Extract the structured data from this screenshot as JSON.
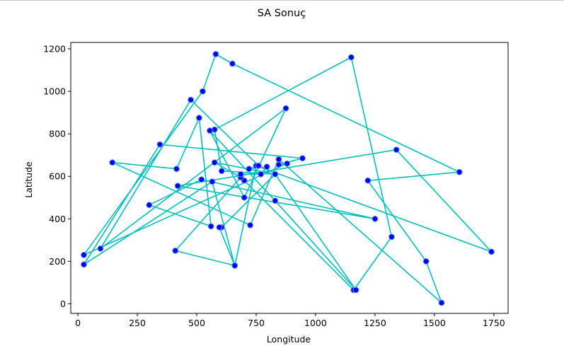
{
  "chart_data": {
    "type": "line",
    "title": "SA Sonuç",
    "xlabel": "Longitude",
    "ylabel": "Latitude",
    "xlim": [
      -30,
      1810
    ],
    "ylim": [
      -45,
      1230
    ],
    "xticks": [
      0,
      250,
      500,
      750,
      1000,
      1250,
      1500,
      1750
    ],
    "yticks": [
      0,
      200,
      400,
      600,
      800,
      1000,
      1200
    ],
    "grid": false,
    "line_color": "#00bfbf",
    "marker_face_color": "#0000ff",
    "marker_edge_color": "#6fa8dc",
    "series": [
      {
        "x": [
          565,
          25,
          345,
          945,
          845,
          880,
          25,
          525,
          580,
          650,
          1605,
          1220,
          1465,
          1530,
          845,
          725,
          145,
          415,
          510,
          560,
          300,
          520,
          1250,
          420,
          1340,
          1740,
          750,
          660,
          410,
          685,
          575,
          830,
          605,
          575,
          1150,
          1320,
          1160,
          700,
          685,
          685,
          770,
          795,
          720,
          760,
          475,
          95,
          875,
          700,
          555,
          830,
          1170,
          830,
          605,
          595,
          660,
          660,
          565
        ],
        "y": [
          575,
          185,
          750,
          685,
          655,
          660,
          230,
          1000,
          1175,
          1130,
          620,
          580,
          200,
          5,
          680,
          370,
          665,
          635,
          875,
          365,
          465,
          585,
          400,
          555,
          725,
          245,
          650,
          180,
          250,
          595,
          665,
          610,
          625,
          820,
          1160,
          315,
          65,
          580,
          595,
          610,
          610,
          645,
          635,
          650,
          960,
          260,
          920,
          500,
          815,
          485,
          65,
          610,
          360,
          360,
          180,
          180,
          575
        ]
      }
    ]
  }
}
